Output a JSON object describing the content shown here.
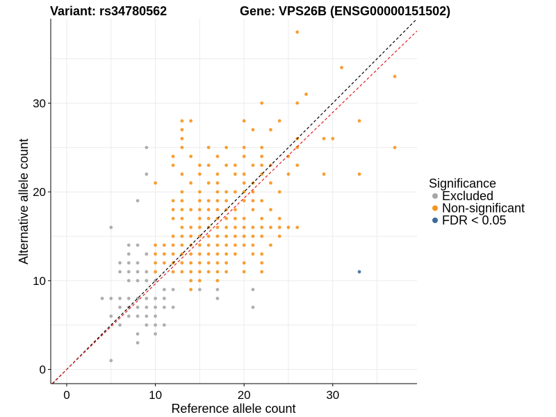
{
  "chart_data": {
    "type": "scatter",
    "title_left": "Variant: rs34780562",
    "title_right": "Gene: VPS26B (ENSG00000151502)",
    "xlabel": "Reference allele count",
    "ylabel": "Alternative allele count",
    "xlim": [
      -1.8,
      39.5
    ],
    "ylim": [
      -1.6,
      39.5
    ],
    "x_ticks": [
      0,
      10,
      20,
      30
    ],
    "y_ticks": [
      0,
      10,
      20,
      30
    ],
    "grid": true,
    "reference_lines": [
      {
        "style": "dashed",
        "color": "#000000",
        "slope": 1.0,
        "intercept": 0
      },
      {
        "style": "dashed",
        "color": "#e31a1c",
        "slope": 0.965,
        "intercept": 0
      }
    ],
    "legend": {
      "title": "Significance",
      "position": "right",
      "entries": [
        {
          "label": "Excluded",
          "color": "#a6a6a6"
        },
        {
          "label": "Non-significant",
          "color": "#f7941d"
        },
        {
          "label": "FDR < 0.05",
          "color": "#3b6b9c"
        }
      ]
    },
    "series": [
      {
        "name": "Excluded",
        "color": "#a6a6a6",
        "points": [
          [
            9,
            25
          ],
          [
            9,
            22
          ],
          [
            8,
            19
          ],
          [
            5,
            16
          ],
          [
            7,
            14
          ],
          [
            8,
            14
          ],
          [
            7,
            13
          ],
          [
            9,
            13
          ],
          [
            6,
            12
          ],
          [
            7,
            12
          ],
          [
            8,
            12
          ],
          [
            6,
            11
          ],
          [
            7,
            11
          ],
          [
            8,
            11
          ],
          [
            9,
            11
          ],
          [
            7,
            10
          ],
          [
            8,
            10
          ],
          [
            9,
            10
          ],
          [
            10,
            10
          ],
          [
            11,
            9
          ],
          [
            12,
            9
          ],
          [
            15,
            9
          ],
          [
            17,
            9
          ],
          [
            21,
            9
          ],
          [
            4,
            8
          ],
          [
            5,
            8
          ],
          [
            6,
            8
          ],
          [
            7,
            8
          ],
          [
            8,
            8
          ],
          [
            9,
            8
          ],
          [
            10,
            8
          ],
          [
            11,
            8
          ],
          [
            17,
            8
          ],
          [
            6,
            7
          ],
          [
            7,
            7
          ],
          [
            8,
            7
          ],
          [
            9,
            7
          ],
          [
            10,
            7
          ],
          [
            11,
            7
          ],
          [
            12,
            7
          ],
          [
            21,
            7
          ],
          [
            5,
            6
          ],
          [
            7,
            6
          ],
          [
            8,
            6
          ],
          [
            9,
            6
          ],
          [
            10,
            6
          ],
          [
            6,
            5
          ],
          [
            9,
            5
          ],
          [
            10,
            5
          ],
          [
            11,
            5
          ],
          [
            8,
            4
          ],
          [
            10,
            4
          ],
          [
            8,
            3
          ],
          [
            5,
            1
          ]
        ]
      },
      {
        "name": "Non-significant",
        "color": "#f7941d",
        "points": [
          [
            26,
            38
          ],
          [
            31,
            34
          ],
          [
            37,
            33
          ],
          [
            27,
            31
          ],
          [
            22,
            30
          ],
          [
            26,
            30
          ],
          [
            13,
            28
          ],
          [
            14,
            28
          ],
          [
            20,
            28
          ],
          [
            24,
            28
          ],
          [
            33,
            28
          ],
          [
            13,
            27
          ],
          [
            21,
            27
          ],
          [
            23,
            27
          ],
          [
            13,
            26
          ],
          [
            26,
            26
          ],
          [
            29,
            26
          ],
          [
            30,
            26
          ],
          [
            13,
            25
          ],
          [
            16,
            25
          ],
          [
            18,
            25
          ],
          [
            20,
            25
          ],
          [
            22,
            25
          ],
          [
            26,
            25
          ],
          [
            37,
            25
          ],
          [
            12,
            24
          ],
          [
            14,
            24
          ],
          [
            17,
            24
          ],
          [
            20,
            24
          ],
          [
            22,
            24
          ],
          [
            25,
            24
          ],
          [
            12,
            23
          ],
          [
            15,
            23
          ],
          [
            16,
            23
          ],
          [
            18,
            23
          ],
          [
            19,
            23
          ],
          [
            21,
            23
          ],
          [
            22,
            23
          ],
          [
            23,
            23
          ],
          [
            26,
            23
          ],
          [
            13,
            22
          ],
          [
            15,
            22
          ],
          [
            17,
            22
          ],
          [
            19,
            22
          ],
          [
            20,
            22
          ],
          [
            22,
            22
          ],
          [
            25,
            22
          ],
          [
            29,
            22
          ],
          [
            33,
            22
          ],
          [
            10,
            21
          ],
          [
            14,
            21
          ],
          [
            16,
            21
          ],
          [
            17,
            21
          ],
          [
            20,
            21
          ],
          [
            21,
            21
          ],
          [
            23,
            21
          ],
          [
            13,
            20
          ],
          [
            15,
            20
          ],
          [
            17,
            20
          ],
          [
            18,
            20
          ],
          [
            19,
            20
          ],
          [
            20,
            20
          ],
          [
            21,
            20
          ],
          [
            24,
            20
          ],
          [
            12,
            19
          ],
          [
            13,
            19
          ],
          [
            15,
            19
          ],
          [
            16,
            19
          ],
          [
            17,
            19
          ],
          [
            18,
            19
          ],
          [
            20,
            19
          ],
          [
            21,
            19
          ],
          [
            22,
            19
          ],
          [
            12,
            18
          ],
          [
            13,
            18
          ],
          [
            14,
            18
          ],
          [
            15,
            18
          ],
          [
            16,
            18
          ],
          [
            17,
            18
          ],
          [
            18,
            18
          ],
          [
            19,
            18
          ],
          [
            21,
            18
          ],
          [
            23,
            18
          ],
          [
            12,
            17
          ],
          [
            13,
            17
          ],
          [
            15,
            17
          ],
          [
            16,
            17
          ],
          [
            17,
            17
          ],
          [
            18,
            17
          ],
          [
            19,
            17
          ],
          [
            20,
            17
          ],
          [
            22,
            17
          ],
          [
            24,
            17
          ],
          [
            13,
            16
          ],
          [
            14,
            16
          ],
          [
            15,
            16
          ],
          [
            16,
            16
          ],
          [
            17,
            16
          ],
          [
            18,
            16
          ],
          [
            19,
            16
          ],
          [
            20,
            16
          ],
          [
            21,
            16
          ],
          [
            22,
            16
          ],
          [
            23,
            16
          ],
          [
            24,
            16
          ],
          [
            25,
            16
          ],
          [
            26,
            16
          ],
          [
            12,
            15
          ],
          [
            13,
            15
          ],
          [
            14,
            15
          ],
          [
            15,
            15
          ],
          [
            16,
            15
          ],
          [
            17,
            15
          ],
          [
            18,
            15
          ],
          [
            19,
            15
          ],
          [
            20,
            15
          ],
          [
            21,
            15
          ],
          [
            22,
            15
          ],
          [
            24,
            15
          ],
          [
            10,
            14
          ],
          [
            11,
            14
          ],
          [
            12,
            14
          ],
          [
            13,
            14
          ],
          [
            14,
            14
          ],
          [
            15,
            14
          ],
          [
            16,
            14
          ],
          [
            17,
            14
          ],
          [
            18,
            14
          ],
          [
            19,
            14
          ],
          [
            20,
            14
          ],
          [
            21,
            14
          ],
          [
            23,
            14
          ],
          [
            10,
            13
          ],
          [
            11,
            13
          ],
          [
            12,
            13
          ],
          [
            13,
            13
          ],
          [
            14,
            13
          ],
          [
            15,
            13
          ],
          [
            16,
            13
          ],
          [
            17,
            13
          ],
          [
            18,
            13
          ],
          [
            19,
            13
          ],
          [
            21,
            13
          ],
          [
            22,
            13
          ],
          [
            10,
            12
          ],
          [
            11,
            12
          ],
          [
            12,
            12
          ],
          [
            13,
            12
          ],
          [
            14,
            12
          ],
          [
            15,
            12
          ],
          [
            16,
            12
          ],
          [
            17,
            12
          ],
          [
            18,
            12
          ],
          [
            20,
            12
          ],
          [
            22,
            12
          ],
          [
            10,
            11
          ],
          [
            12,
            11
          ],
          [
            13,
            11
          ],
          [
            14,
            11
          ],
          [
            15,
            11
          ],
          [
            16,
            11
          ],
          [
            17,
            11
          ],
          [
            18,
            11
          ],
          [
            20,
            11
          ],
          [
            22,
            11
          ],
          [
            14,
            10
          ],
          [
            15,
            10
          ],
          [
            17,
            10
          ],
          [
            14,
            9
          ]
        ]
      },
      {
        "name": "FDR < 0.05",
        "color": "#3b6b9c",
        "points": [
          [
            33,
            11
          ]
        ]
      }
    ]
  }
}
